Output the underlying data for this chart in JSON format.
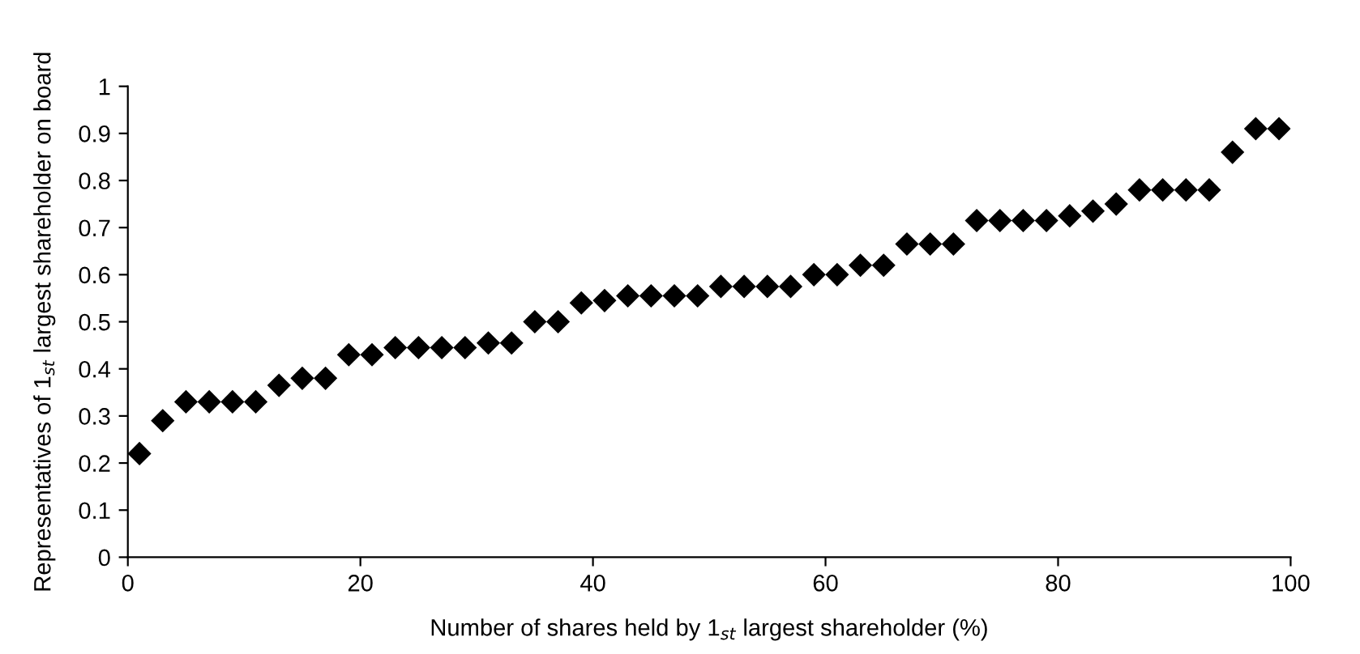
{
  "chart_data": {
    "type": "scatter",
    "xlabel": "Number of shares held by 1$_{st}$ largest shareholder (%)",
    "ylabel": "Representatives of 1$_{st}$ largest shareholder on board",
    "x": [
      1,
      3,
      5,
      7,
      9,
      11,
      13,
      15,
      17,
      19,
      21,
      23,
      25,
      27,
      29,
      31,
      33,
      35,
      37,
      39,
      41,
      43,
      45,
      47,
      49,
      51,
      53,
      55,
      57,
      59,
      61,
      63,
      65,
      67,
      69,
      71,
      73,
      75,
      77,
      79,
      81,
      83,
      85,
      87,
      89,
      91,
      93,
      95,
      97,
      99
    ],
    "series": [
      {
        "color": "#000000",
        "values": [
          0.22,
          0.29,
          0.33,
          0.33,
          0.33,
          0.33,
          0.365,
          0.38,
          0.38,
          0.43,
          0.43,
          0.445,
          0.445,
          0.445,
          0.445,
          0.455,
          0.455,
          0.5,
          0.5,
          0.54,
          0.545,
          0.555,
          0.555,
          0.555,
          0.555,
          0.575,
          0.575,
          0.575,
          0.575,
          0.6,
          0.6,
          0.62,
          0.62,
          0.665,
          0.665,
          0.665,
          0.715,
          0.715,
          0.715,
          0.715,
          0.725,
          0.735,
          0.75,
          0.78,
          0.78,
          0.78,
          0.78,
          0.86,
          0.91,
          0.91
        ]
      }
    ],
    "xlim": [
      0,
      100
    ],
    "xticks": [
      0,
      20,
      40,
      60,
      80,
      100
    ],
    "ylim": [
      0,
      1
    ],
    "yticks": [
      0,
      0.1,
      0.2,
      0.3,
      0.4,
      0.5,
      0.6,
      0.7,
      0.8,
      0.9,
      1
    ],
    "marker": "diamond",
    "grid": false,
    "legend": false
  }
}
